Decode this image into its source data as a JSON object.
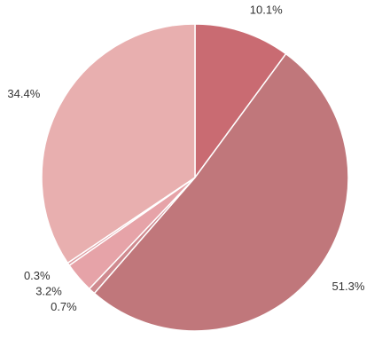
{
  "chart_data": {
    "type": "pie",
    "values": [
      10.1,
      51.3,
      0.7,
      3.2,
      0.3,
      34.4
    ],
    "value_labels": [
      "10.1%",
      "51.3%",
      "0.7%",
      "3.2%",
      "0.3%",
      "34.4%"
    ],
    "colors": [
      "#c96b72",
      "#c0777b",
      "#cf8a8f",
      "#e6a3a8",
      "#dd9ea3",
      "#e8afaf"
    ]
  }
}
